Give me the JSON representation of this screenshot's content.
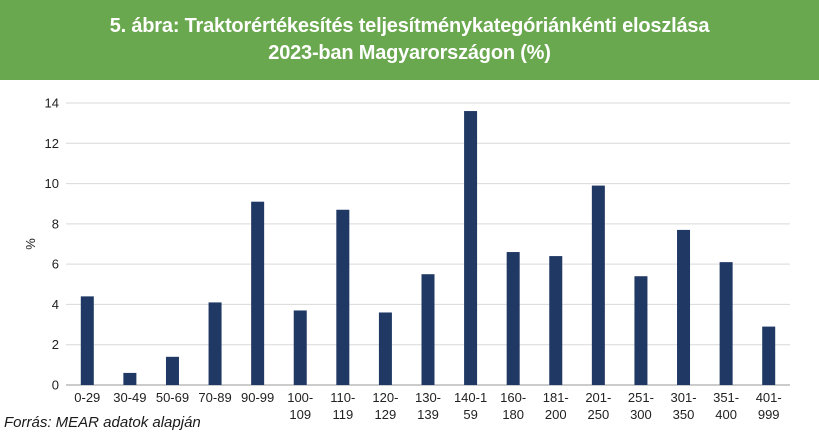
{
  "header": {
    "title_line1": "5. ábra: Traktorértékesítés teljesítménykategóriánkénti eloszlása",
    "title_line2": "2023-ban Magyarországon (%)"
  },
  "source_note": "Forrás: MEAR adatok alapján",
  "colors": {
    "bar": "#1f3864",
    "header_bg": "#6aa84f",
    "grid": "#d9d9d9"
  },
  "chart_data": {
    "type": "bar",
    "title": "5. ábra: Traktorértékesítés teljesítménykategóriánkénti eloszlása 2023-ban Magyarországon (%)",
    "xlabel": "",
    "ylabel": "%",
    "ylim": [
      0,
      14
    ],
    "yticks": [
      0,
      2,
      4,
      6,
      8,
      10,
      12,
      14
    ],
    "grid": true,
    "legend": "none",
    "categories": [
      [
        "0-29"
      ],
      [
        "30-49"
      ],
      [
        "50-69"
      ],
      [
        "70-89"
      ],
      [
        "90-99"
      ],
      [
        "100-",
        "109"
      ],
      [
        "110-",
        "119"
      ],
      [
        "120-",
        "129"
      ],
      [
        "130-",
        "139"
      ],
      [
        "140-1",
        "59"
      ],
      [
        "160-",
        "180"
      ],
      [
        "181-",
        "200"
      ],
      [
        "201-",
        "250"
      ],
      [
        "251-",
        "300"
      ],
      [
        "301-",
        "350"
      ],
      [
        "351-",
        "400"
      ],
      [
        "401-",
        "999"
      ]
    ],
    "values": [
      4.4,
      0.6,
      1.4,
      4.1,
      9.1,
      3.7,
      8.7,
      3.6,
      5.5,
      13.6,
      6.6,
      6.4,
      9.9,
      5.4,
      7.7,
      6.1,
      2.9
    ]
  }
}
